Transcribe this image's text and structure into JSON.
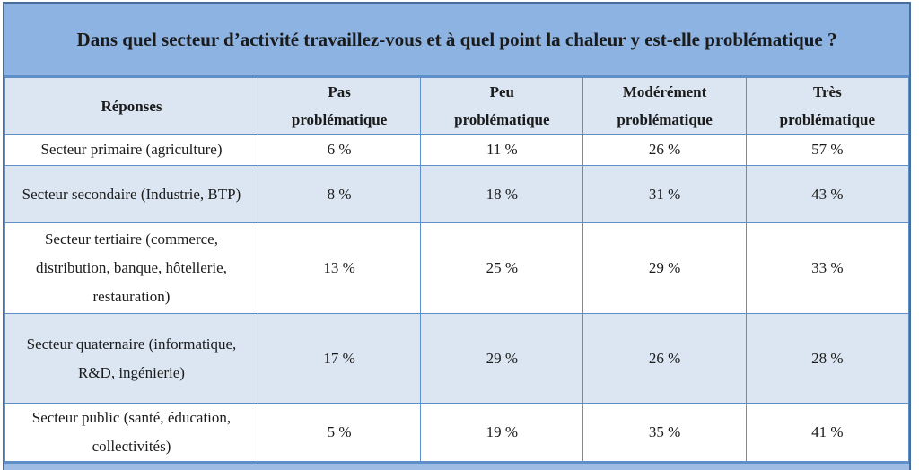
{
  "title": "Dans quel secteur d’activité travaillez-vous et à quel point la chaleur y est-elle problématique ?",
  "table": {
    "columns": [
      "Réponses",
      "Pas problématique",
      "Peu problématique",
      "Modérément problématique",
      "Très problématique"
    ],
    "rows": [
      {
        "label": "Secteur primaire (agriculture)",
        "values": [
          "6 %",
          "11 %",
          "26 %",
          "57 %"
        ]
      },
      {
        "label": "Secteur secondaire (Industrie, BTP)",
        "values": [
          "8 %",
          "18 %",
          "31 %",
          "43 %"
        ]
      },
      {
        "label": "Secteur tertiaire (commerce, distribution, banque, hôtellerie, restauration)",
        "values": [
          "13 %",
          "25 %",
          "29 %",
          "33 %"
        ]
      },
      {
        "label": "Secteur quaternaire (informatique, R&D, ingénierie)",
        "values": [
          "17 %",
          "29 %",
          "26 %",
          "28 %"
        ]
      },
      {
        "label": "Secteur public (santé, éducation, collectivités)",
        "values": [
          "5 %",
          "19 %",
          "35 %",
          "41 %"
        ]
      }
    ]
  },
  "chart_data": {
    "type": "table",
    "title": "Dans quel secteur d’activité travaillez-vous et à quel point la chaleur y est-elle problématique ?",
    "columns": [
      "Pas problématique",
      "Peu problématique",
      "Modérément problématique",
      "Très problématique"
    ],
    "unit": "%",
    "rows": [
      {
        "label": "Secteur primaire (agriculture)",
        "values": [
          6,
          11,
          26,
          57
        ]
      },
      {
        "label": "Secteur secondaire (Industrie, BTP)",
        "values": [
          8,
          18,
          31,
          43
        ]
      },
      {
        "label": "Secteur tertiaire (commerce, distribution, banque, hôtellerie, restauration)",
        "values": [
          13,
          25,
          29,
          33
        ]
      },
      {
        "label": "Secteur quaternaire (informatique, R&D, ingénierie)",
        "values": [
          17,
          29,
          26,
          28
        ]
      },
      {
        "label": "Secteur public (santé, éducation, collectivités)",
        "values": [
          5,
          19,
          35,
          41
        ]
      }
    ]
  },
  "colors": {
    "title_bg": "#8DB3E2",
    "header_bg": "#DCE6F2",
    "row_bg": "#FFFFFF",
    "row_alt_bg": "#DCE6F2",
    "border_outer": "#466F9E",
    "border_inner": "#5F8FC9",
    "cutoff_strip_bg": "#9FBCE4",
    "text": "#1B1B1B"
  }
}
